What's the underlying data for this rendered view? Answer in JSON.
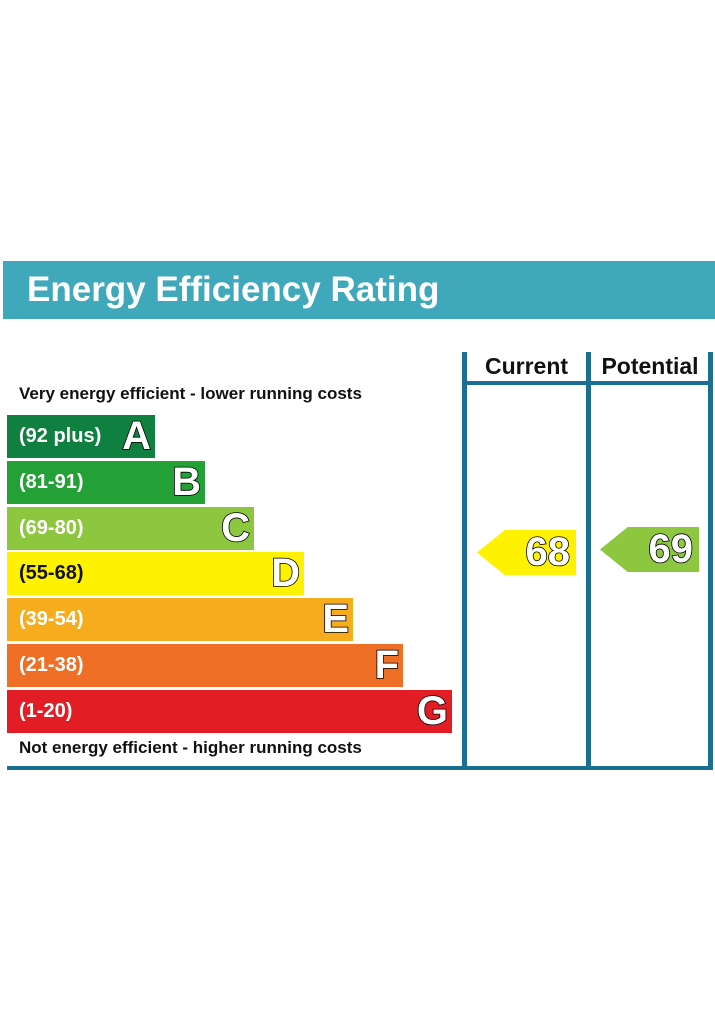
{
  "title": "Energy Efficiency Rating",
  "columns": {
    "current": "Current",
    "potential": "Potential"
  },
  "top_caption": "Very energy efficient - lower running costs",
  "bottom_caption": "Not energy efficient - higher running costs",
  "chart_data": {
    "type": "bar",
    "bands": [
      {
        "letter": "A",
        "range": "(92 plus)",
        "color": "#0f8040"
      },
      {
        "letter": "B",
        "range": "(81-91)",
        "color": "#23a036"
      },
      {
        "letter": "C",
        "range": "(69-80)",
        "color": "#8dc63f"
      },
      {
        "letter": "D",
        "range": "(55-68)",
        "color": "#fff200"
      },
      {
        "letter": "E",
        "range": "(39-54)",
        "color": "#f7ac1e"
      },
      {
        "letter": "F",
        "range": "(21-38)",
        "color": "#ee6f25"
      },
      {
        "letter": "G",
        "range": "(1-20)",
        "color": "#e31d25"
      }
    ],
    "current": {
      "value": 68,
      "band": "D",
      "color": "#fff200"
    },
    "potential": {
      "value": 69,
      "band": "C",
      "color": "#8dc63f"
    }
  }
}
